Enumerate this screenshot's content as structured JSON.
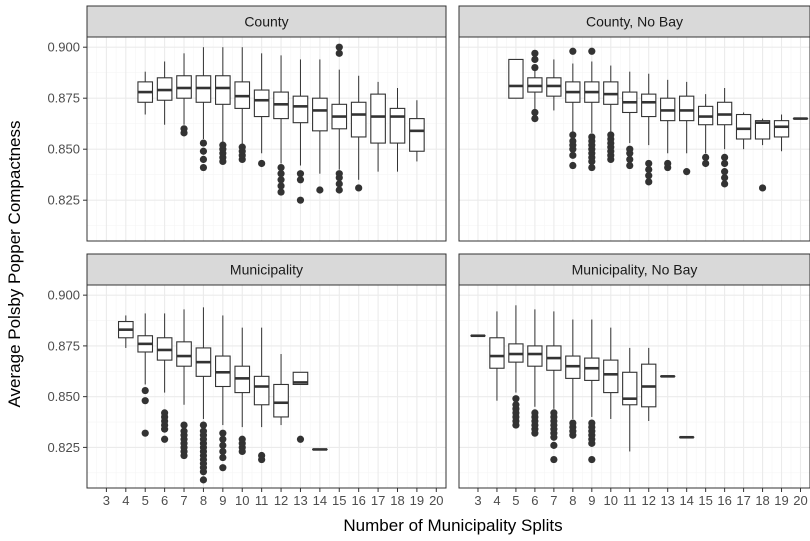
{
  "chart_data": {
    "type": "boxplot",
    "xlabel": "Number of Municipality Splits",
    "ylabel": "Average Polsby Popper Compactness",
    "x_ticks": [
      "3",
      "4",
      "5",
      "6",
      "7",
      "8",
      "9",
      "10",
      "11",
      "12",
      "13",
      "14",
      "15",
      "16",
      "17",
      "18",
      "19",
      "20"
    ],
    "y_ticks": [
      "0.825",
      "0.850",
      "0.875",
      "0.900"
    ],
    "xlim": [
      2,
      20.5
    ],
    "ylim": [
      0.805,
      0.905
    ],
    "grid": true,
    "colors": {
      "box_line": "#333333",
      "outlier": "#333333",
      "strip_fill": "#d9d9d9",
      "panel_border": "#333333",
      "grid_major": "#ebebeb",
      "grid_minor": "#f5f5f5"
    },
    "panels": [
      {
        "title": "County",
        "boxes": [
          {
            "x": 5,
            "lower": 0.867,
            "q1": 0.873,
            "median": 0.878,
            "q3": 0.883,
            "upper": 0.888,
            "outliers": []
          },
          {
            "x": 6,
            "lower": 0.862,
            "q1": 0.874,
            "median": 0.879,
            "q3": 0.885,
            "upper": 0.893,
            "outliers": []
          },
          {
            "x": 7,
            "lower": 0.862,
            "q1": 0.875,
            "median": 0.88,
            "q3": 0.886,
            "upper": 0.897,
            "outliers": [
              0.858,
              0.86
            ]
          },
          {
            "x": 8,
            "lower": 0.855,
            "q1": 0.873,
            "median": 0.88,
            "q3": 0.886,
            "upper": 0.9,
            "outliers": [
              0.841,
              0.845,
              0.849,
              0.853
            ]
          },
          {
            "x": 9,
            "lower": 0.853,
            "q1": 0.872,
            "median": 0.88,
            "q3": 0.886,
            "upper": 0.9,
            "outliers": [
              0.844,
              0.846,
              0.848,
              0.85,
              0.852
            ]
          },
          {
            "x": 10,
            "lower": 0.852,
            "q1": 0.87,
            "median": 0.876,
            "q3": 0.883,
            "upper": 0.9,
            "outliers": [
              0.845,
              0.847,
              0.849,
              0.851
            ]
          },
          {
            "x": 11,
            "lower": 0.848,
            "q1": 0.866,
            "median": 0.874,
            "q3": 0.879,
            "upper": 0.897,
            "outliers": [
              0.843
            ]
          },
          {
            "x": 12,
            "lower": 0.843,
            "q1": 0.865,
            "median": 0.872,
            "q3": 0.878,
            "upper": 0.896,
            "outliers": [
              0.829,
              0.832,
              0.835,
              0.838,
              0.841
            ]
          },
          {
            "x": 13,
            "lower": 0.842,
            "q1": 0.863,
            "median": 0.871,
            "q3": 0.876,
            "upper": 0.894,
            "outliers": [
              0.825,
              0.835,
              0.838
            ]
          },
          {
            "x": 14,
            "lower": 0.838,
            "q1": 0.859,
            "median": 0.869,
            "q3": 0.875,
            "upper": 0.894,
            "outliers": [
              0.83
            ]
          },
          {
            "x": 15,
            "lower": 0.84,
            "q1": 0.86,
            "median": 0.866,
            "q3": 0.872,
            "upper": 0.889,
            "outliers": [
              0.83,
              0.833,
              0.836,
              0.838,
              0.897,
              0.9
            ]
          },
          {
            "x": 16,
            "lower": 0.835,
            "q1": 0.856,
            "median": 0.867,
            "q3": 0.873,
            "upper": 0.886,
            "outliers": [
              0.831
            ]
          },
          {
            "x": 17,
            "lower": 0.839,
            "q1": 0.853,
            "median": 0.866,
            "q3": 0.877,
            "upper": 0.883,
            "outliers": []
          },
          {
            "x": 18,
            "lower": 0.839,
            "q1": 0.853,
            "median": 0.866,
            "q3": 0.87,
            "upper": 0.88,
            "outliers": []
          },
          {
            "x": 19,
            "lower": 0.844,
            "q1": 0.849,
            "median": 0.859,
            "q3": 0.865,
            "upper": 0.874,
            "outliers": []
          }
        ]
      },
      {
        "title": "County, No Bay",
        "boxes": [
          {
            "x": 5,
            "lower": 0.875,
            "q1": 0.875,
            "median": 0.881,
            "q3": 0.894,
            "upper": 0.894,
            "outliers": []
          },
          {
            "x": 6,
            "lower": 0.867,
            "q1": 0.878,
            "median": 0.881,
            "q3": 0.885,
            "upper": 0.89,
            "outliers": [
              0.865,
              0.868,
              0.89,
              0.894,
              0.897
            ]
          },
          {
            "x": 7,
            "lower": 0.869,
            "q1": 0.876,
            "median": 0.881,
            "q3": 0.885,
            "upper": 0.894,
            "outliers": []
          },
          {
            "x": 8,
            "lower": 0.858,
            "q1": 0.873,
            "median": 0.878,
            "q3": 0.883,
            "upper": 0.892,
            "outliers": [
              0.842,
              0.847,
              0.85,
              0.852,
              0.854,
              0.857,
              0.898
            ]
          },
          {
            "x": 9,
            "lower": 0.858,
            "q1": 0.873,
            "median": 0.878,
            "q3": 0.883,
            "upper": 0.893,
            "outliers": [
              0.841,
              0.844,
              0.846,
              0.848,
              0.85,
              0.852,
              0.854,
              0.856,
              0.898
            ]
          },
          {
            "x": 10,
            "lower": 0.858,
            "q1": 0.872,
            "median": 0.877,
            "q3": 0.883,
            "upper": 0.891,
            "outliers": [
              0.845,
              0.847,
              0.849,
              0.851,
              0.853,
              0.855,
              0.857
            ]
          },
          {
            "x": 11,
            "lower": 0.853,
            "q1": 0.868,
            "median": 0.873,
            "q3": 0.878,
            "upper": 0.888,
            "outliers": [
              0.842,
              0.845,
              0.848,
              0.85
            ]
          },
          {
            "x": 12,
            "lower": 0.852,
            "q1": 0.866,
            "median": 0.873,
            "q3": 0.877,
            "upper": 0.887,
            "outliers": [
              0.834,
              0.837,
              0.84,
              0.843
            ]
          },
          {
            "x": 13,
            "lower": 0.848,
            "q1": 0.864,
            "median": 0.869,
            "q3": 0.875,
            "upper": 0.884,
            "outliers": [
              0.841,
              0.843
            ]
          },
          {
            "x": 14,
            "lower": 0.848,
            "q1": 0.864,
            "median": 0.869,
            "q3": 0.876,
            "upper": 0.883,
            "outliers": [
              0.839
            ]
          },
          {
            "x": 15,
            "lower": 0.848,
            "q1": 0.862,
            "median": 0.866,
            "q3": 0.871,
            "upper": 0.877,
            "outliers": [
              0.843,
              0.846
            ]
          },
          {
            "x": 16,
            "lower": 0.85,
            "q1": 0.862,
            "median": 0.867,
            "q3": 0.873,
            "upper": 0.88,
            "outliers": [
              0.833,
              0.836,
              0.839,
              0.843,
              0.846
            ]
          },
          {
            "x": 17,
            "lower": 0.85,
            "q1": 0.855,
            "median": 0.86,
            "q3": 0.867,
            "upper": 0.868,
            "outliers": []
          },
          {
            "x": 18,
            "lower": 0.852,
            "q1": 0.855,
            "median": 0.863,
            "q3": 0.864,
            "upper": 0.865,
            "outliers": [
              0.831
            ]
          },
          {
            "x": 19,
            "lower": 0.849,
            "q1": 0.856,
            "median": 0.861,
            "q3": 0.864,
            "upper": 0.867,
            "outliers": []
          },
          {
            "x": 20,
            "lower": 0.865,
            "q1": 0.865,
            "median": 0.865,
            "q3": 0.865,
            "upper": 0.865,
            "outliers": []
          }
        ]
      },
      {
        "title": "Municipality",
        "boxes": [
          {
            "x": 4,
            "lower": 0.874,
            "q1": 0.879,
            "median": 0.883,
            "q3": 0.887,
            "upper": 0.89,
            "outliers": []
          },
          {
            "x": 5,
            "lower": 0.856,
            "q1": 0.872,
            "median": 0.876,
            "q3": 0.88,
            "upper": 0.891,
            "outliers": [
              0.832,
              0.848,
              0.853
            ]
          },
          {
            "x": 6,
            "lower": 0.852,
            "q1": 0.868,
            "median": 0.873,
            "q3": 0.879,
            "upper": 0.891,
            "outliers": [
              0.829,
              0.834,
              0.836,
              0.838,
              0.84,
              0.842
            ]
          },
          {
            "x": 7,
            "lower": 0.846,
            "q1": 0.865,
            "median": 0.87,
            "q3": 0.877,
            "upper": 0.893,
            "outliers": [
              0.821,
              0.823,
              0.825,
              0.827,
              0.829,
              0.831,
              0.833,
              0.836
            ]
          },
          {
            "x": 8,
            "lower": 0.839,
            "q1": 0.86,
            "median": 0.867,
            "q3": 0.874,
            "upper": 0.894,
            "outliers": [
              0.809,
              0.813,
              0.815,
              0.817,
              0.819,
              0.821,
              0.823,
              0.825,
              0.827,
              0.829,
              0.831,
              0.833,
              0.836
            ]
          },
          {
            "x": 9,
            "lower": 0.836,
            "q1": 0.855,
            "median": 0.862,
            "q3": 0.87,
            "upper": 0.89,
            "outliers": [
              0.815,
              0.82,
              0.823,
              0.826,
              0.829,
              0.832
            ]
          },
          {
            "x": 10,
            "lower": 0.835,
            "q1": 0.852,
            "median": 0.859,
            "q3": 0.865,
            "upper": 0.884,
            "outliers": [
              0.823,
              0.825,
              0.827,
              0.829
            ]
          },
          {
            "x": 11,
            "lower": 0.835,
            "q1": 0.846,
            "median": 0.855,
            "q3": 0.86,
            "upper": 0.884,
            "outliers": [
              0.819,
              0.821
            ]
          },
          {
            "x": 12,
            "lower": 0.836,
            "q1": 0.84,
            "median": 0.847,
            "q3": 0.856,
            "upper": 0.871,
            "outliers": []
          },
          {
            "x": 13,
            "lower": 0.856,
            "q1": 0.856,
            "median": 0.857,
            "q3": 0.862,
            "upper": 0.862,
            "outliers": [
              0.829
            ]
          },
          {
            "x": 14,
            "lower": 0.824,
            "q1": 0.824,
            "median": 0.824,
            "q3": 0.824,
            "upper": 0.824,
            "outliers": []
          }
        ]
      },
      {
        "title": "Municipality, No Bay",
        "boxes": [
          {
            "x": 3,
            "lower": 0.88,
            "q1": 0.88,
            "median": 0.88,
            "q3": 0.88,
            "upper": 0.88,
            "outliers": []
          },
          {
            "x": 4,
            "lower": 0.848,
            "q1": 0.864,
            "median": 0.87,
            "q3": 0.879,
            "upper": 0.892,
            "outliers": []
          },
          {
            "x": 5,
            "lower": 0.852,
            "q1": 0.867,
            "median": 0.871,
            "q3": 0.876,
            "upper": 0.895,
            "outliers": [
              0.836,
              0.838,
              0.84,
              0.842,
              0.844,
              0.846,
              0.849
            ]
          },
          {
            "x": 6,
            "lower": 0.845,
            "q1": 0.865,
            "median": 0.871,
            "q3": 0.875,
            "upper": 0.893,
            "outliers": [
              0.832,
              0.834,
              0.836,
              0.838,
              0.84,
              0.842
            ]
          },
          {
            "x": 7,
            "lower": 0.844,
            "q1": 0.863,
            "median": 0.869,
            "q3": 0.875,
            "upper": 0.892,
            "outliers": [
              0.819,
              0.826,
              0.83,
              0.832,
              0.834,
              0.836,
              0.838,
              0.84,
              0.842
            ]
          },
          {
            "x": 8,
            "lower": 0.839,
            "q1": 0.859,
            "median": 0.865,
            "q3": 0.87,
            "upper": 0.888,
            "outliers": [
              0.831,
              0.833,
              0.835,
              0.837
            ]
          },
          {
            "x": 9,
            "lower": 0.84,
            "q1": 0.858,
            "median": 0.864,
            "q3": 0.869,
            "upper": 0.888,
            "outliers": [
              0.819,
              0.827,
              0.829,
              0.831,
              0.833,
              0.835,
              0.837
            ]
          },
          {
            "x": 10,
            "lower": 0.839,
            "q1": 0.852,
            "median": 0.861,
            "q3": 0.868,
            "upper": 0.884,
            "outliers": []
          },
          {
            "x": 11,
            "lower": 0.823,
            "q1": 0.846,
            "median": 0.849,
            "q3": 0.862,
            "upper": 0.874,
            "outliers": []
          },
          {
            "x": 12,
            "lower": 0.838,
            "q1": 0.845,
            "median": 0.855,
            "q3": 0.866,
            "upper": 0.874,
            "outliers": []
          },
          {
            "x": 13,
            "lower": 0.86,
            "q1": 0.86,
            "median": 0.86,
            "q3": 0.86,
            "upper": 0.86,
            "outliers": []
          },
          {
            "x": 14,
            "lower": 0.83,
            "q1": 0.83,
            "median": 0.83,
            "q3": 0.83,
            "upper": 0.83,
            "outliers": []
          }
        ]
      }
    ]
  }
}
